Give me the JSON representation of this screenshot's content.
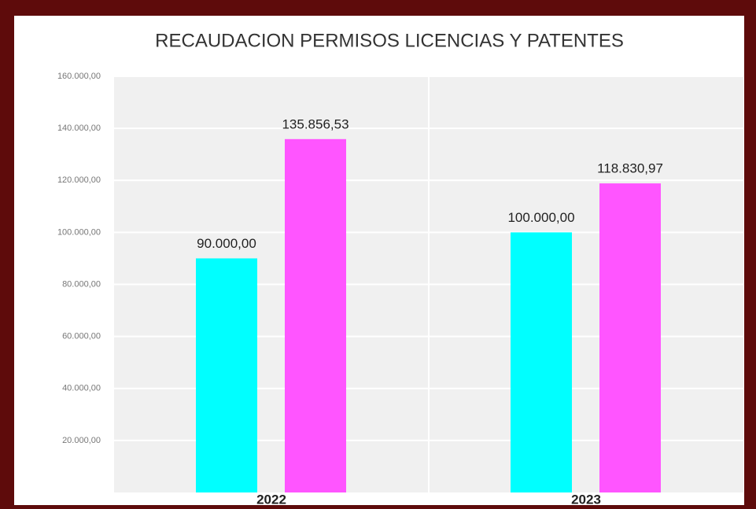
{
  "chart_data": {
    "type": "bar",
    "title": "RECAUDACION PERMISOS LICENCIAS Y PATENTES",
    "categories": [
      "2022",
      "2023"
    ],
    "series": [
      {
        "color": "#00ffff",
        "values": [
          90000,
          100000
        ],
        "value_labels": [
          "90.000,00",
          "100.000,00"
        ]
      },
      {
        "color": "#ff55ff",
        "values": [
          135856.53,
          118830.97
        ],
        "value_labels": [
          "135.856,53",
          "118.830,97"
        ]
      }
    ],
    "ylim": [
      0,
      160000
    ],
    "yticks": [
      {
        "value": 20000,
        "label": "20.000,00"
      },
      {
        "value": 40000,
        "label": "40.000,00"
      },
      {
        "value": 60000,
        "label": "60.000,00"
      },
      {
        "value": 80000,
        "label": "80.000,00"
      },
      {
        "value": 100000,
        "label": "100.000,00"
      },
      {
        "value": 120000,
        "label": "120.000,00"
      },
      {
        "value": 140000,
        "label": "140.000,00"
      },
      {
        "value": 160000,
        "label": "160.000,00"
      }
    ],
    "grid": true
  }
}
